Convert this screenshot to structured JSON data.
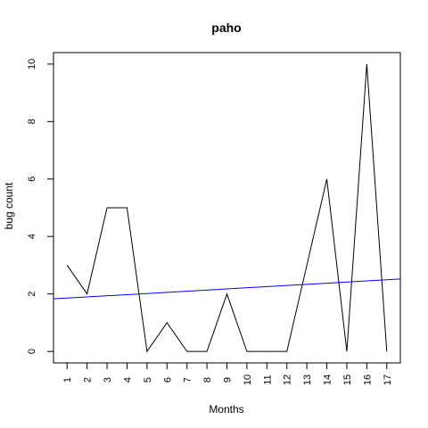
{
  "chart_data": {
    "type": "line",
    "title": "paho",
    "xlabel": "Months",
    "ylabel": "bug count",
    "x": [
      1,
      2,
      3,
      4,
      5,
      6,
      7,
      8,
      9,
      10,
      11,
      12,
      13,
      14,
      15,
      16,
      17
    ],
    "x_tick_labels": [
      "1",
      "2",
      "3",
      "4",
      "5",
      "6",
      "7",
      "8",
      "9",
      "10",
      "11",
      "12",
      "13",
      "14",
      "15",
      "16",
      "17"
    ],
    "y_ticks": [
      0,
      2,
      4,
      6,
      8,
      10
    ],
    "y_tick_labels": [
      "0",
      "2",
      "4",
      "6",
      "8",
      "10"
    ],
    "xlim": [
      0.32,
      17.68
    ],
    "ylim": [
      -0.4,
      10.4
    ],
    "grid": false,
    "series": [
      {
        "values": [
          3,
          2,
          5,
          5,
          0,
          1,
          0,
          0,
          2,
          0,
          0,
          0,
          3,
          6,
          0,
          10,
          0
        ],
        "color": "#000000"
      }
    ],
    "trend_line": {
      "color": "#0000ff",
      "start": {
        "x": 0.32,
        "y": 1.83
      },
      "end": {
        "x": 17.68,
        "y": 2.52
      }
    }
  }
}
